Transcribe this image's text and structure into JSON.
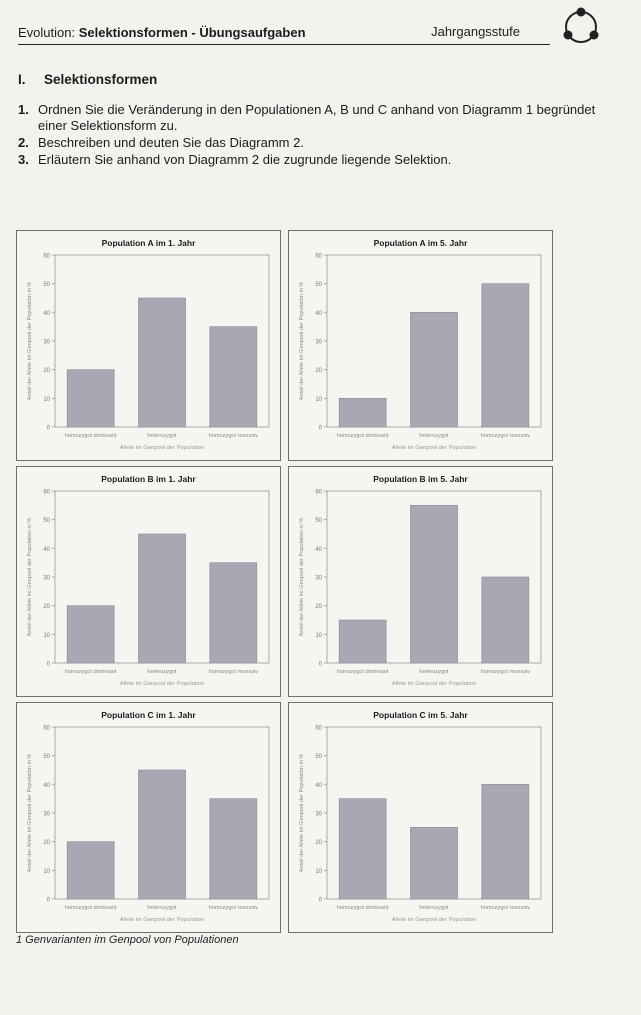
{
  "header": {
    "title_plain": "Evolution: ",
    "title_bold": "Selektionsformen - Übungsaufgaben",
    "right_label": "Jahrgangsstufe"
  },
  "section": {
    "number": "I.",
    "title": "Selektionsformen"
  },
  "tasks": [
    {
      "num": "1.",
      "text": "Ordnen Sie die Veränderung in den Populationen A, B und C anhand von Diagramm 1 begründet einer Selektionsform zu."
    },
    {
      "num": "2.",
      "text": "Beschreiben und deuten Sie das Diagramm 2."
    },
    {
      "num": "3.",
      "text": "Erläutern Sie anhand von Diagramm 2 die zugrunde liegende Selektion."
    }
  ],
  "caption": "1 Genvarianten im Genpool von Populationen",
  "colors": {
    "bar": "#a8a8b4",
    "bar_stroke": "#8a8a96",
    "axis": "#9a9a9a"
  },
  "chart_data": [
    {
      "type": "bar",
      "title": "Population A im 1. Jahr",
      "categories": [
        "homozygot dominant",
        "heterozygot",
        "homozygot rezessiv"
      ],
      "values": [
        20,
        45,
        35
      ],
      "xlabel": "Allele im Genpool der Population",
      "ylabel": "Anteil der Allele im Genpool der Population in %",
      "ylim": [
        0,
        60
      ],
      "yticks": [
        0,
        10,
        20,
        30,
        40,
        50,
        60
      ]
    },
    {
      "type": "bar",
      "title": "Population A im 5. Jahr",
      "categories": [
        "homozygot dominant",
        "heterozygot",
        "homozygot rezessiv"
      ],
      "values": [
        10,
        40,
        50
      ],
      "xlabel": "Allele im Genpool der Population",
      "ylabel": "Anteil der Allele im Genpool der Population in %",
      "ylim": [
        0,
        60
      ],
      "yticks": [
        0,
        10,
        20,
        30,
        40,
        50,
        60
      ]
    },
    {
      "type": "bar",
      "title": "Population B im 1. Jahr",
      "categories": [
        "homozygot dominant",
        "heterozygot",
        "homozygot rezessiv"
      ],
      "values": [
        20,
        45,
        35
      ],
      "xlabel": "Allele im Genpool der Population",
      "ylabel": "Anteil der Allele im Genpool der Population in %",
      "ylim": [
        0,
        60
      ],
      "yticks": [
        0,
        10,
        20,
        30,
        40,
        50,
        60
      ]
    },
    {
      "type": "bar",
      "title": "Population B im 5. Jahr",
      "categories": [
        "homozygot dominant",
        "heterozygot",
        "homozygot rezessiv"
      ],
      "values": [
        15,
        55,
        30
      ],
      "xlabel": "Allele im Genpool der Population",
      "ylabel": "Anteil der Allele im Genpool der Population in %",
      "ylim": [
        0,
        60
      ],
      "yticks": [
        0,
        10,
        20,
        30,
        40,
        50,
        60
      ]
    },
    {
      "type": "bar",
      "title": "Population C im 1. Jahr",
      "categories": [
        "homozygot dominant",
        "heterozygot",
        "homozygot rezessiv"
      ],
      "values": [
        20,
        45,
        35
      ],
      "xlabel": "Allele im Genpool der Population",
      "ylabel": "Anteil der Allele im Genpool der Population in %",
      "ylim": [
        0,
        60
      ],
      "yticks": [
        0,
        10,
        20,
        30,
        40,
        50,
        60
      ]
    },
    {
      "type": "bar",
      "title": "Population C im 5. Jahr",
      "categories": [
        "homozygot dominant",
        "heterozygot",
        "homozygot rezessiv"
      ],
      "values": [
        35,
        25,
        40
      ],
      "xlabel": "Allele im Genpool der Population",
      "ylabel": "Anteil der Allele im Genpool der Population in %",
      "ylim": [
        0,
        60
      ],
      "yticks": [
        0,
        10,
        20,
        30,
        40,
        50,
        60
      ]
    }
  ]
}
